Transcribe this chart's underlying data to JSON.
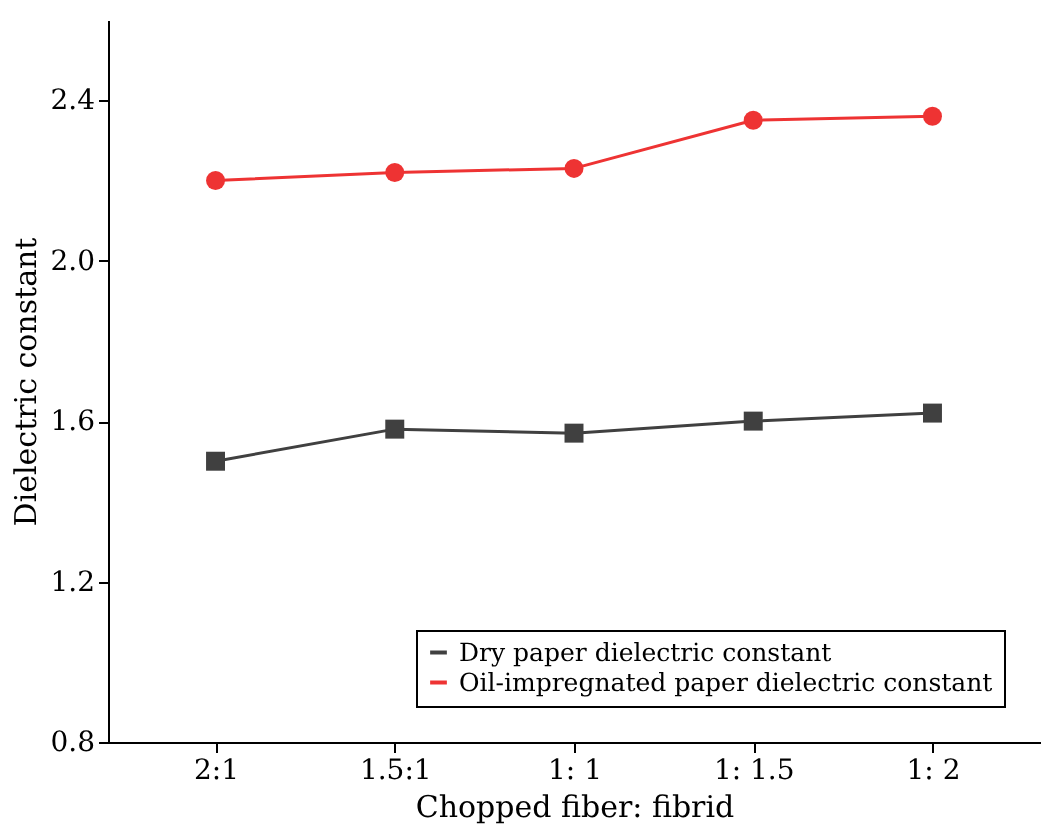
{
  "chart_data": {
    "type": "line",
    "xlabel": "Chopped fiber: fibrid",
    "ylabel": "Dielectric constant",
    "categories": [
      "2:1",
      "1.5:1",
      "1: 1",
      "1: 1.5",
      "1: 2"
    ],
    "series": [
      {
        "name": "Dry paper dielectric constant",
        "color": "#404040",
        "marker": "square",
        "values": [
          1.5,
          1.58,
          1.57,
          1.6,
          1.62
        ]
      },
      {
        "name": "Oil-impregnated paper dielectric constant",
        "color": "#ee3333",
        "marker": "circle",
        "values": [
          2.2,
          2.22,
          2.23,
          2.35,
          2.36
        ]
      }
    ],
    "ylim": [
      0.8,
      2.6
    ],
    "yticks": [
      0.8,
      1.2,
      1.6,
      {
        "value": 2,
        "label": "2.0"
      },
      2.4
    ],
    "grid": false,
    "legend": "bottom right",
    "line_style": "solid"
  }
}
